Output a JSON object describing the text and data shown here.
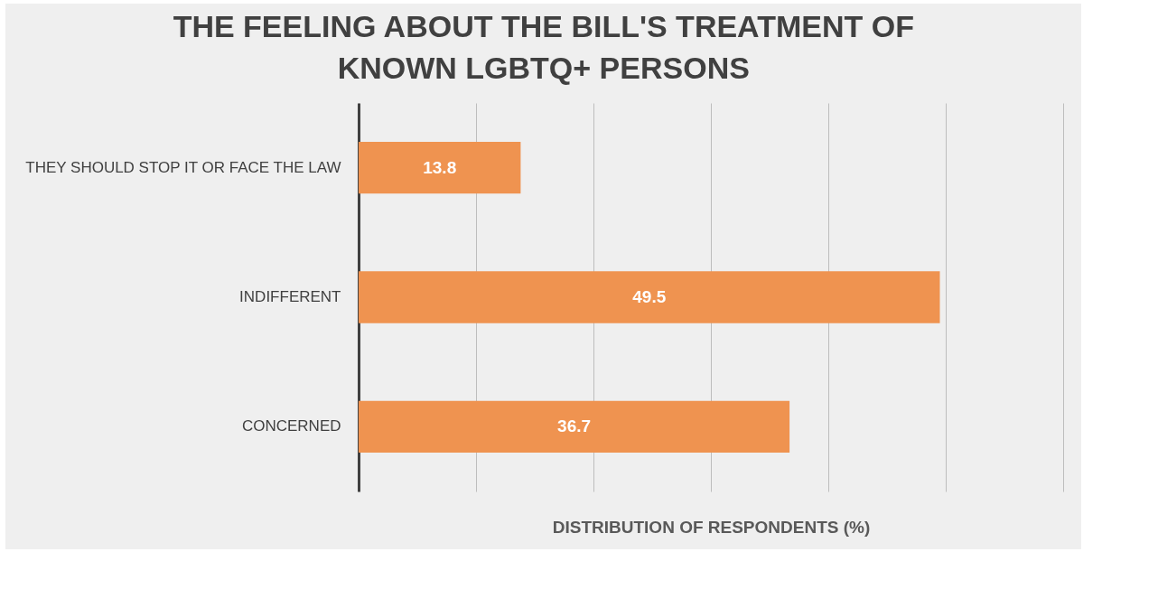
{
  "chart_data": {
    "type": "bar",
    "orientation": "horizontal",
    "title": "THE FEELING ABOUT THE BILL'S TREATMENT OF KNOWN LGBTQ+ PERSONS",
    "xlabel": "DISTRIBUTION OF RESPONDENTS (%)",
    "categories": [
      "THEY SHOULD STOP IT OR FACE THE LAW",
      "INDIFFERENT",
      "CONCERNED"
    ],
    "values": [
      13.8,
      49.5,
      36.7
    ],
    "color": "#ef9350",
    "data_labels": true,
    "xlim": [
      0,
      60
    ],
    "xticks": [
      {
        "value": 0,
        "label": null
      },
      {
        "value": 10,
        "label": null
      },
      {
        "value": 20,
        "label": null
      },
      {
        "value": 30,
        "label": null
      },
      {
        "value": 40,
        "label": null
      },
      {
        "value": 50,
        "label": null
      },
      {
        "value": 60,
        "label": null
      }
    ],
    "grid": "x",
    "tick_labels": "y"
  }
}
